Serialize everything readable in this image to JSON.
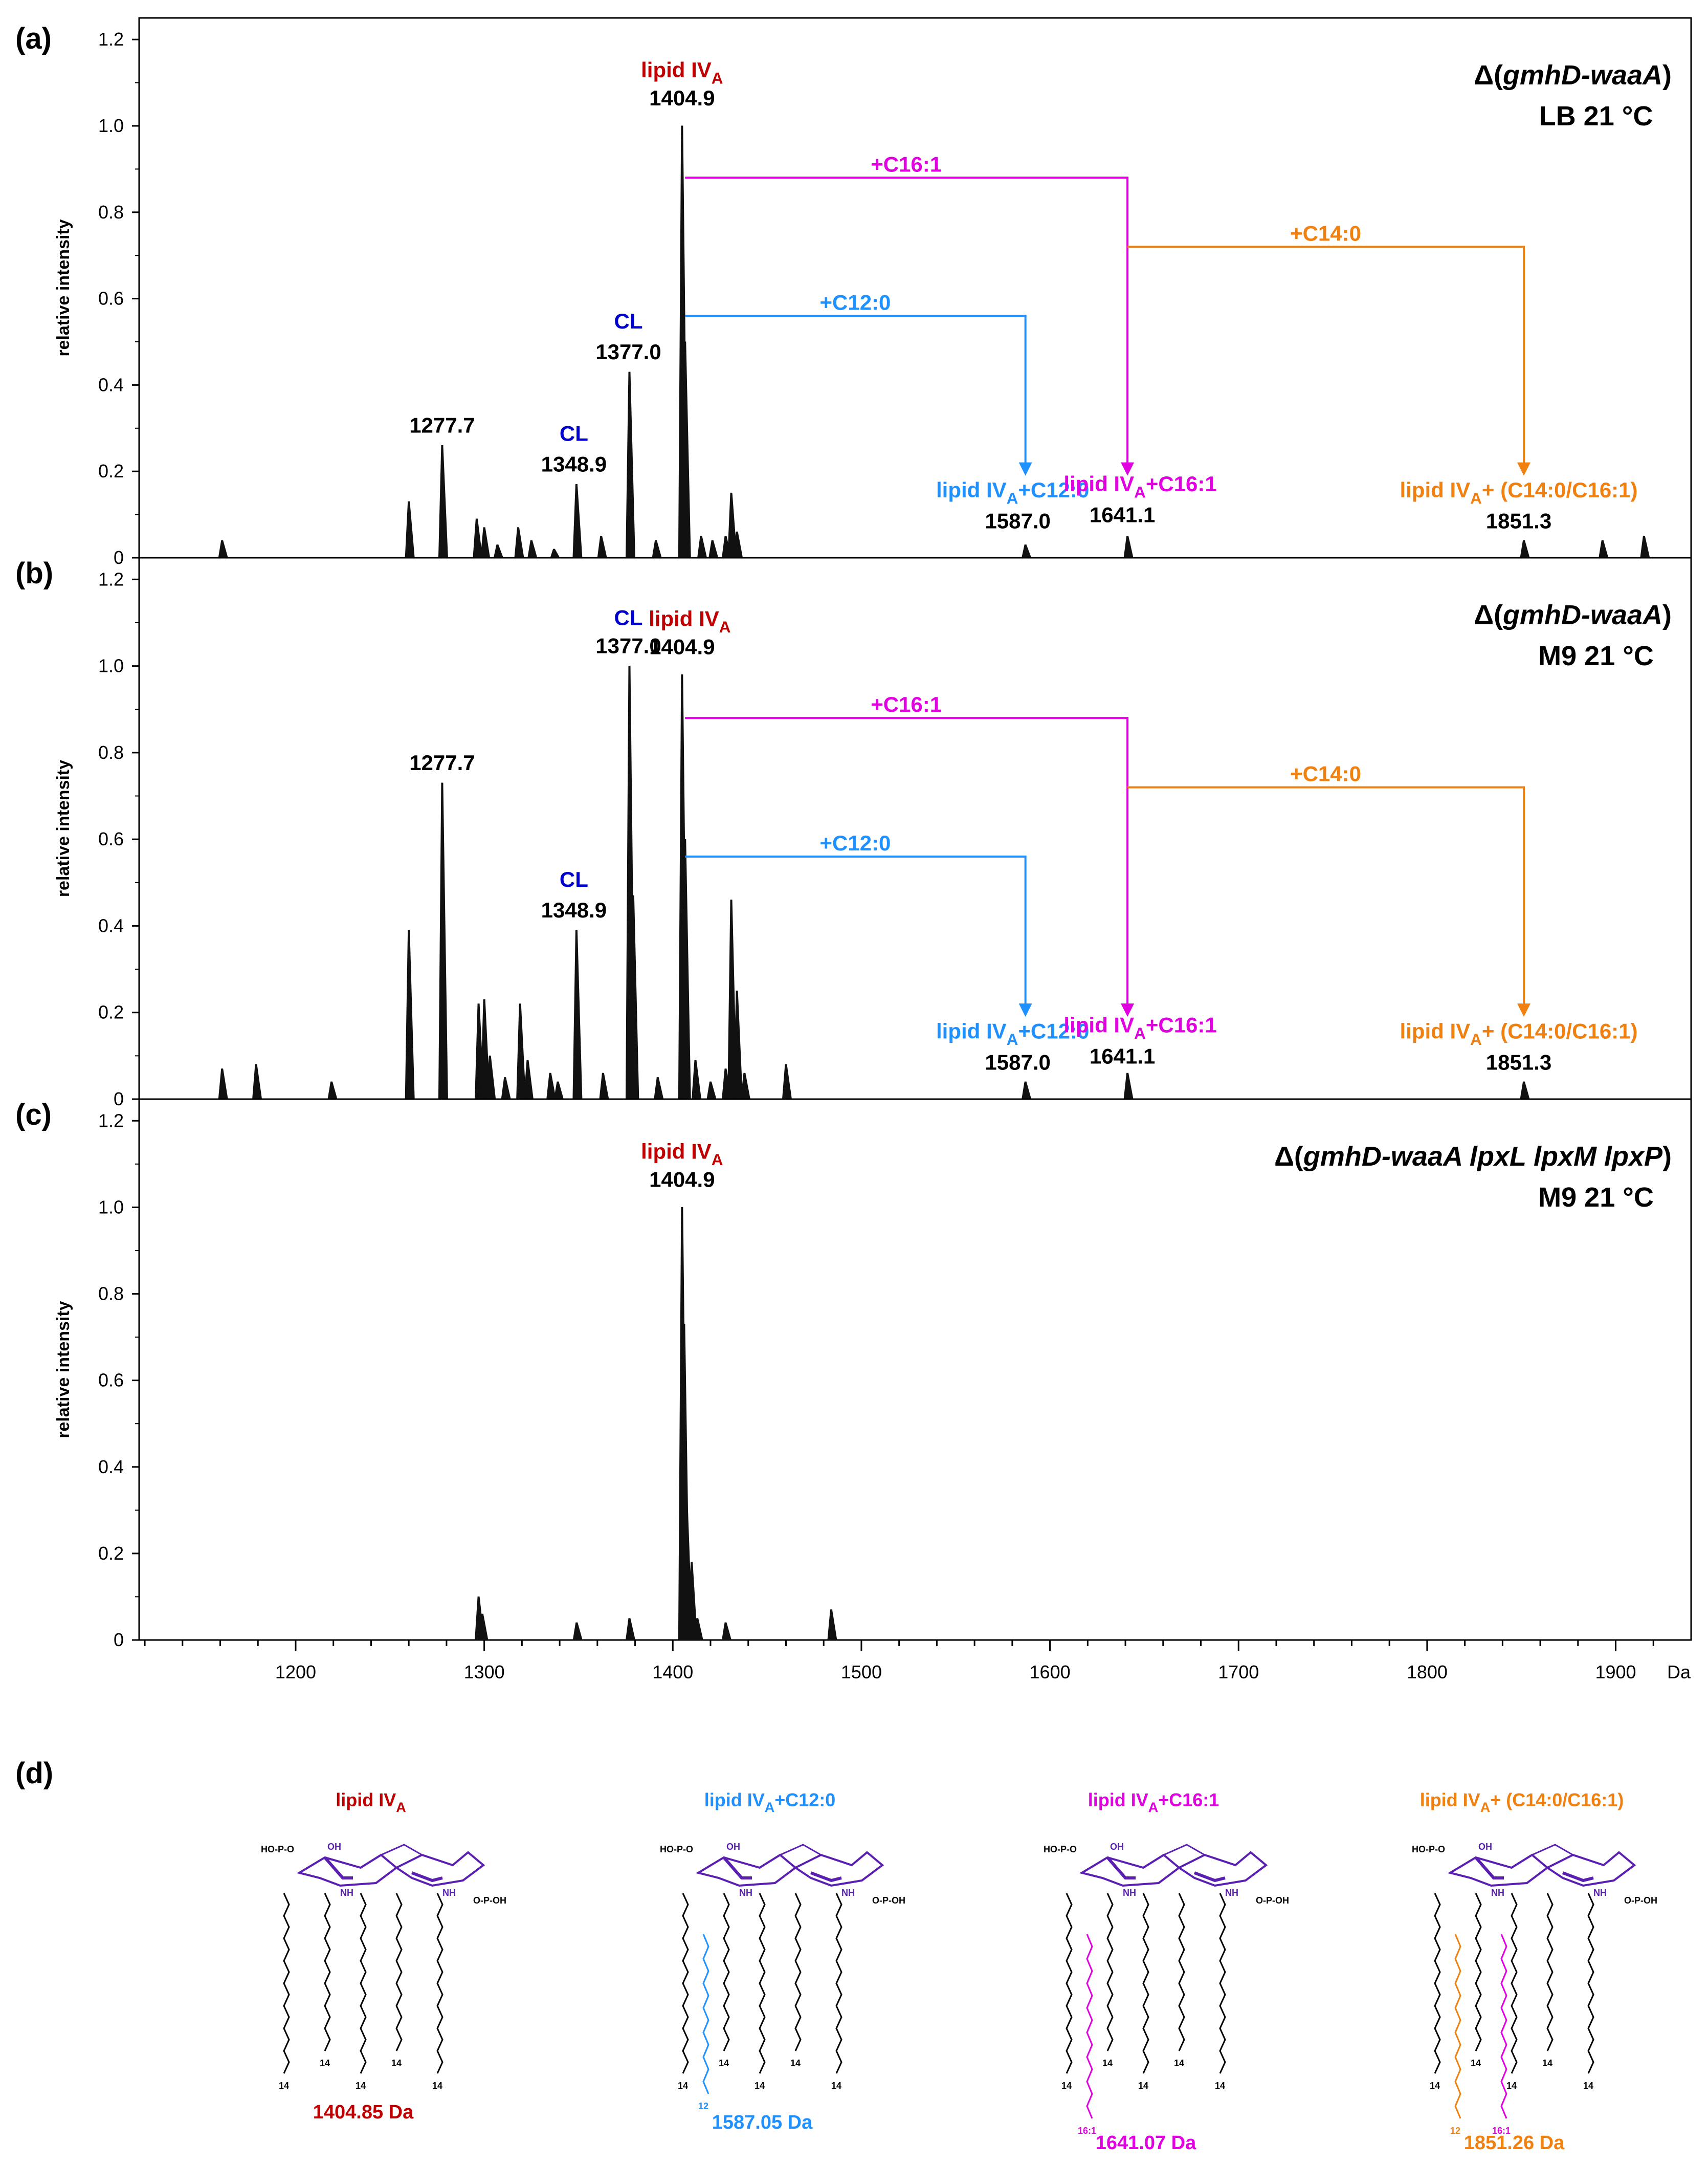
{
  "colors": {
    "lipid": "#c00000",
    "cl": "#0000cc",
    "c12": "#1e90ff",
    "c16": "#e000e0",
    "c14": "#f08010",
    "struct_purple": "#5a1fb0",
    "black": "#000000"
  },
  "chart_data": [
    {
      "type": "line",
      "panel_label": "(a)",
      "condition_line1": "Δ(gmhD-waaA)",
      "condition_line2": "LB 21 °C",
      "ylabel": "relative intensity",
      "ylim": [
        0,
        1.25
      ],
      "xlim": [
        1117,
        1940
      ],
      "yticks": [
        "0",
        "0.2",
        "0.4",
        "0.6",
        "0.8",
        "1.0",
        "1.2"
      ],
      "peaks": [
        {
          "x": 1161,
          "y": 0.04
        },
        {
          "x": 1260,
          "y": 0.13
        },
        {
          "x": 1277.7,
          "y": 0.26
        },
        {
          "x": 1296,
          "y": 0.09
        },
        {
          "x": 1300,
          "y": 0.07
        },
        {
          "x": 1307,
          "y": 0.03
        },
        {
          "x": 1318,
          "y": 0.07
        },
        {
          "x": 1325,
          "y": 0.04
        },
        {
          "x": 1337,
          "y": 0.02
        },
        {
          "x": 1348.9,
          "y": 0.17
        },
        {
          "x": 1362,
          "y": 0.05
        },
        {
          "x": 1377.0,
          "y": 0.43
        },
        {
          "x": 1391,
          "y": 0.04
        },
        {
          "x": 1404.9,
          "y": 1.0
        },
        {
          "x": 1406.5,
          "y": 0.5
        },
        {
          "x": 1415,
          "y": 0.05
        },
        {
          "x": 1421,
          "y": 0.04
        },
        {
          "x": 1428,
          "y": 0.05
        },
        {
          "x": 1431,
          "y": 0.15
        },
        {
          "x": 1434,
          "y": 0.06
        },
        {
          "x": 1587.0,
          "y": 0.03
        },
        {
          "x": 1641.1,
          "y": 0.05
        },
        {
          "x": 1851.3,
          "y": 0.04
        },
        {
          "x": 1893,
          "y": 0.04
        },
        {
          "x": 1915,
          "y": 0.05
        }
      ],
      "labels": {
        "lipid_main": "lipid IV",
        "lipid_sub": "A",
        "lipid_mz": "1404.9",
        "cl1_name": "CL",
        "cl1_mz": "1377.0",
        "cl2_name": "CL",
        "cl2_mz": "1348.9",
        "p1277": "1277.7",
        "c16": "+C16:1",
        "c14": "+C14:0",
        "c12": "+C12:0",
        "c12_label_main": "lipid IV",
        "c12_label_sub": "A",
        "c12_label_rest": "+C12:0",
        "c12_mz": "1587.0",
        "c16_label_main": "lipid IV",
        "c16_label_sub": "A",
        "c16_label_rest": "+C16:1",
        "c16_mz": "1641.1",
        "c14_label_main": "lipid IV",
        "c14_label_sub": "A",
        "c14_label_rest": "+ (C14:0/C16:1)",
        "c14_mz": "1851.3"
      }
    },
    {
      "type": "line",
      "panel_label": "(b)",
      "condition_line1": "Δ(gmhD-waaA)",
      "condition_line2": "M9 21 °C",
      "ylabel": "relative intensity",
      "ylim": [
        0,
        1.25
      ],
      "xlim": [
        1117,
        1940
      ],
      "yticks": [
        "0",
        "0.2",
        "0.4",
        "0.6",
        "0.8",
        "1.0",
        "1.2"
      ],
      "peaks": [
        {
          "x": 1161,
          "y": 0.07
        },
        {
          "x": 1179,
          "y": 0.08
        },
        {
          "x": 1219,
          "y": 0.04
        },
        {
          "x": 1260,
          "y": 0.39
        },
        {
          "x": 1277.7,
          "y": 0.73
        },
        {
          "x": 1297,
          "y": 0.22
        },
        {
          "x": 1300,
          "y": 0.23
        },
        {
          "x": 1303,
          "y": 0.1
        },
        {
          "x": 1311,
          "y": 0.05
        },
        {
          "x": 1319,
          "y": 0.22
        },
        {
          "x": 1323,
          "y": 0.09
        },
        {
          "x": 1335,
          "y": 0.06
        },
        {
          "x": 1339,
          "y": 0.04
        },
        {
          "x": 1348.9,
          "y": 0.39
        },
        {
          "x": 1363,
          "y": 0.06
        },
        {
          "x": 1377.0,
          "y": 1.0
        },
        {
          "x": 1379,
          "y": 0.47
        },
        {
          "x": 1392,
          "y": 0.05
        },
        {
          "x": 1404.9,
          "y": 0.98
        },
        {
          "x": 1406.5,
          "y": 0.6
        },
        {
          "x": 1412,
          "y": 0.09
        },
        {
          "x": 1420,
          "y": 0.04
        },
        {
          "x": 1428,
          "y": 0.07
        },
        {
          "x": 1431,
          "y": 0.46
        },
        {
          "x": 1434,
          "y": 0.25
        },
        {
          "x": 1438,
          "y": 0.06
        },
        {
          "x": 1460,
          "y": 0.08
        },
        {
          "x": 1587.0,
          "y": 0.04
        },
        {
          "x": 1641.1,
          "y": 0.06
        },
        {
          "x": 1851.3,
          "y": 0.04
        }
      ],
      "labels": {
        "lipid_main": "lipid IV",
        "lipid_sub": "A",
        "lipid_mz": "1404.9",
        "cl1_name": "CL",
        "cl1_mz": "1377.0",
        "cl2_name": "CL",
        "cl2_mz": "1348.9",
        "p1277": "1277.7",
        "c16": "+C16:1",
        "c14": "+C14:0",
        "c12": "+C12:0",
        "c12_label_main": "lipid IV",
        "c12_label_sub": "A",
        "c12_label_rest": "+C12:0",
        "c12_mz": "1587.0",
        "c16_label_main": "lipid IV",
        "c16_label_sub": "A",
        "c16_label_rest": "+C16:1",
        "c16_mz": "1641.1",
        "c14_label_main": "lipid IV",
        "c14_label_sub": "A",
        "c14_label_rest": "+ (C14:0/C16:1)",
        "c14_mz": "1851.3"
      }
    },
    {
      "type": "line",
      "panel_label": "(c)",
      "condition_line1": "Δ(gmhD-waaA lpxL lpxM lpxP)",
      "condition_line2": "M9 21 °C",
      "ylabel": "relative intensity",
      "ylim": [
        0,
        1.25
      ],
      "xlim": [
        1117,
        1940
      ],
      "yticks": [
        "0",
        "0.2",
        "0.4",
        "0.6",
        "0.8",
        "1.0",
        "1.2"
      ],
      "xticks": [
        "1200",
        "1300",
        "1400",
        "1500",
        "1600",
        "1700",
        "1800",
        "1900"
      ],
      "xunit": "Da",
      "peaks": [
        {
          "x": 1297,
          "y": 0.1
        },
        {
          "x": 1299,
          "y": 0.06
        },
        {
          "x": 1349,
          "y": 0.04
        },
        {
          "x": 1377,
          "y": 0.05
        },
        {
          "x": 1404.9,
          "y": 1.0
        },
        {
          "x": 1406,
          "y": 0.73
        },
        {
          "x": 1407.5,
          "y": 0.3
        },
        {
          "x": 1410,
          "y": 0.18
        },
        {
          "x": 1413,
          "y": 0.05
        },
        {
          "x": 1428,
          "y": 0.04
        },
        {
          "x": 1484,
          "y": 0.07
        }
      ],
      "labels": {
        "lipid_main": "lipid IV",
        "lipid_sub": "A",
        "lipid_mz": "1404.9"
      }
    }
  ],
  "panel_d": {
    "panel_label": "(d)",
    "structures": [
      {
        "title_main": "lipid IV",
        "title_sub": "A",
        "title_rest": "",
        "mass": "1404.85 Da",
        "color": "#c00000"
      },
      {
        "title_main": "lipid IV",
        "title_sub": "A",
        "title_rest": "+C12:0",
        "mass": "1587.05 Da",
        "color": "#1e90ff"
      },
      {
        "title_main": "lipid IV",
        "title_sub": "A",
        "title_rest": "+C16:1",
        "mass": "1641.07 Da",
        "color": "#e000e0"
      },
      {
        "title_main": "lipid IV",
        "title_sub": "A",
        "title_rest": "+ (C14:0/C16:1)",
        "mass": "1851.26 Da",
        "color": "#f08010"
      }
    ],
    "chain_labels": {
      "c14": "14",
      "c12": "12",
      "c16": "16:1"
    },
    "group_labels": {
      "ho": "HO",
      "oh": "OH",
      "nh": "NH",
      "p": "P",
      "o": "O"
    }
  }
}
